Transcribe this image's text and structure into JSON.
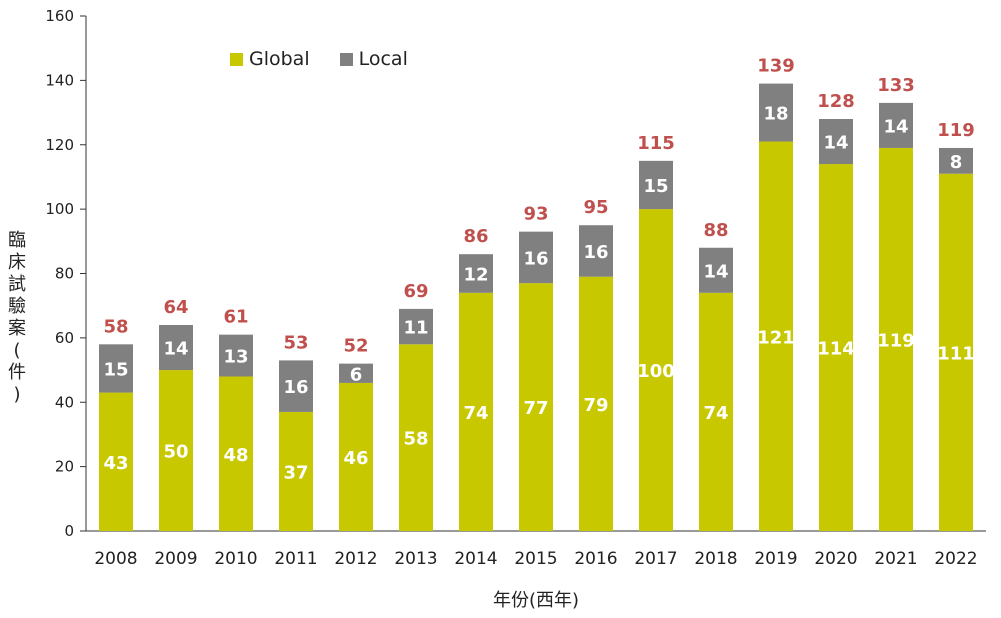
{
  "chart_data": {
    "type": "bar",
    "stacked": true,
    "categories": [
      "2008",
      "2009",
      "2010",
      "2011",
      "2012",
      "2013",
      "2014",
      "2015",
      "2016",
      "2017",
      "2018",
      "2019",
      "2020",
      "2021",
      "2022"
    ],
    "series": [
      {
        "name": "Global",
        "color": "#c8c800",
        "values": [
          43,
          50,
          48,
          37,
          46,
          58,
          74,
          77,
          79,
          100,
          74,
          121,
          114,
          119,
          111
        ]
      },
      {
        "name": "Local",
        "color": "#808080",
        "values": [
          15,
          14,
          13,
          16,
          6,
          11,
          12,
          16,
          16,
          15,
          14,
          18,
          14,
          14,
          8
        ]
      }
    ],
    "totals": [
      58,
      64,
      61,
      53,
      52,
      69,
      86,
      93,
      95,
      115,
      88,
      139,
      128,
      133,
      119
    ],
    "total_label_color": "#c0504d",
    "title": "",
    "xlabel": "年份(西年)",
    "ylabel": "臨床試驗案(件)",
    "ylim": [
      0,
      160
    ],
    "yticks": [
      0,
      20,
      40,
      60,
      80,
      100,
      120,
      140,
      160
    ],
    "grid": false,
    "legend_position": "top-left"
  }
}
